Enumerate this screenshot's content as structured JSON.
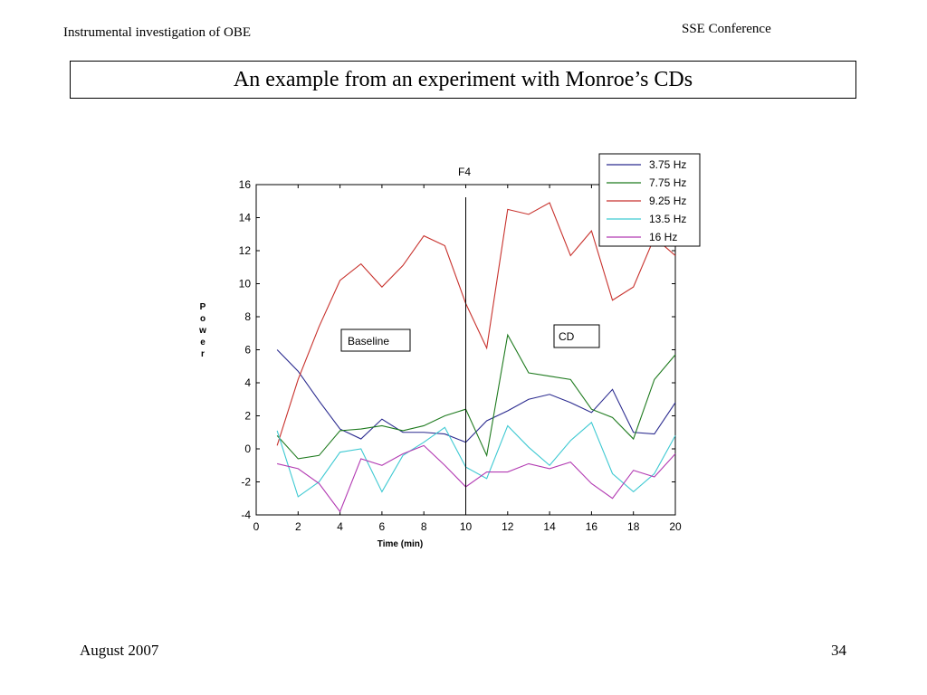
{
  "header": {
    "left_text": "Instrumental investigation of OBE",
    "right_text": "SSE Conference"
  },
  "slide_title": "An example from an experiment with Monroe’s CDs",
  "footer": {
    "date": "August 2007",
    "page_number": "34"
  },
  "chart_data": {
    "type": "line",
    "title": "F4",
    "xlabel": "Time (min)",
    "ylabel": "Power",
    "xlim": [
      0,
      20
    ],
    "ylim": [
      -4,
      16
    ],
    "xticks": [
      0,
      2,
      4,
      6,
      8,
      10,
      12,
      14,
      16,
      18,
      20
    ],
    "yticks": [
      -4,
      -2,
      0,
      2,
      4,
      6,
      8,
      10,
      12,
      14,
      16
    ],
    "grid": false,
    "legend_position": "top-right",
    "x": [
      1,
      2,
      3,
      4,
      5,
      6,
      7,
      8,
      9,
      10,
      11,
      12,
      13,
      14,
      15,
      16,
      17,
      18,
      19,
      20
    ],
    "series": [
      {
        "name": "3.75 Hz",
        "color": "#2b2b8f",
        "values": [
          6.0,
          4.7,
          2.9,
          1.2,
          0.6,
          1.8,
          1.0,
          1.0,
          0.9,
          0.4,
          1.7,
          2.3,
          3.0,
          3.3,
          2.8,
          2.2,
          3.6,
          1.0,
          0.9,
          2.8
        ]
      },
      {
        "name": "7.75 Hz",
        "color": "#1e7a1e",
        "values": [
          0.8,
          -0.6,
          -0.4,
          1.1,
          1.2,
          1.4,
          1.1,
          1.4,
          2.0,
          2.4,
          -0.4,
          6.9,
          4.6,
          4.4,
          4.2,
          2.4,
          1.9,
          0.6,
          4.2,
          5.7
        ]
      },
      {
        "name": "9.25 Hz",
        "color": "#c8322d",
        "values": [
          0.2,
          4.2,
          7.4,
          10.2,
          11.2,
          9.8,
          11.1,
          12.9,
          12.3,
          8.8,
          6.1,
          14.5,
          14.2,
          14.9,
          11.7,
          13.2,
          9.0,
          9.8,
          12.8,
          11.7
        ]
      },
      {
        "name": "13.5 Hz",
        "color": "#3ec9d2",
        "values": [
          1.1,
          -2.9,
          -2.0,
          -0.2,
          0.0,
          -2.6,
          -0.4,
          0.4,
          1.3,
          -1.1,
          -1.8,
          1.4,
          0.1,
          -1.0,
          0.5,
          1.6,
          -1.5,
          -2.6,
          -1.5,
          0.8
        ]
      },
      {
        "name": "16 Hz",
        "color": "#b23ab2",
        "values": [
          -0.9,
          -1.2,
          -2.1,
          -3.8,
          -0.6,
          -1.0,
          -0.3,
          0.2,
          -1.0,
          -2.3,
          -1.4,
          -1.4,
          -0.9,
          -1.2,
          -0.8,
          -2.1,
          -3.0,
          -1.3,
          -1.7,
          -0.3
        ]
      }
    ],
    "vline_x": 10,
    "annotations": [
      {
        "text": "Baseline"
      },
      {
        "text": "CD"
      }
    ]
  }
}
